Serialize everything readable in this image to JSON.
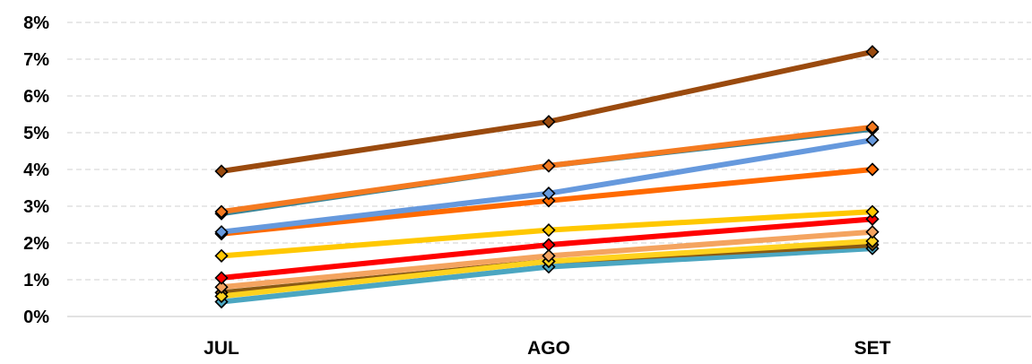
{
  "chart_data": {
    "type": "line",
    "title": "",
    "xlabel": "",
    "ylabel": "",
    "categories": [
      "JUL",
      "AGO",
      "SET"
    ],
    "ylim": [
      0,
      8
    ],
    "yticks": [
      "0%",
      "1%",
      "2%",
      "3%",
      "4%",
      "5%",
      "6%",
      "7%",
      "8%"
    ],
    "grid": true,
    "legend": "none",
    "series": [
      {
        "color": "#9a4a0e",
        "values": [
          3.95,
          5.3,
          7.2
        ]
      },
      {
        "color": "#f47a20",
        "values": [
          2.85,
          4.1,
          5.15
        ]
      },
      {
        "color": "#3a8598",
        "values": [
          2.8,
          4.1,
          5.1
        ]
      },
      {
        "color": "#6699dd",
        "values": [
          2.3,
          3.35,
          4.8
        ]
      },
      {
        "color": "#ff6a00",
        "values": [
          2.25,
          3.15,
          4.0
        ]
      },
      {
        "color": "#ffc800",
        "values": [
          1.65,
          2.35,
          2.85
        ]
      },
      {
        "color": "#ff0000",
        "values": [
          1.05,
          1.95,
          2.65
        ]
      },
      {
        "color": "#f4a460",
        "values": [
          0.8,
          1.65,
          2.3
        ]
      },
      {
        "color": "#ffd21e",
        "values": [
          0.55,
          1.5,
          2.05
        ]
      },
      {
        "color": "#8a5a14",
        "values": [
          0.65,
          1.5,
          1.95
        ]
      },
      {
        "color": "#4ba6c1",
        "values": [
          0.4,
          1.35,
          1.85
        ]
      }
    ]
  }
}
